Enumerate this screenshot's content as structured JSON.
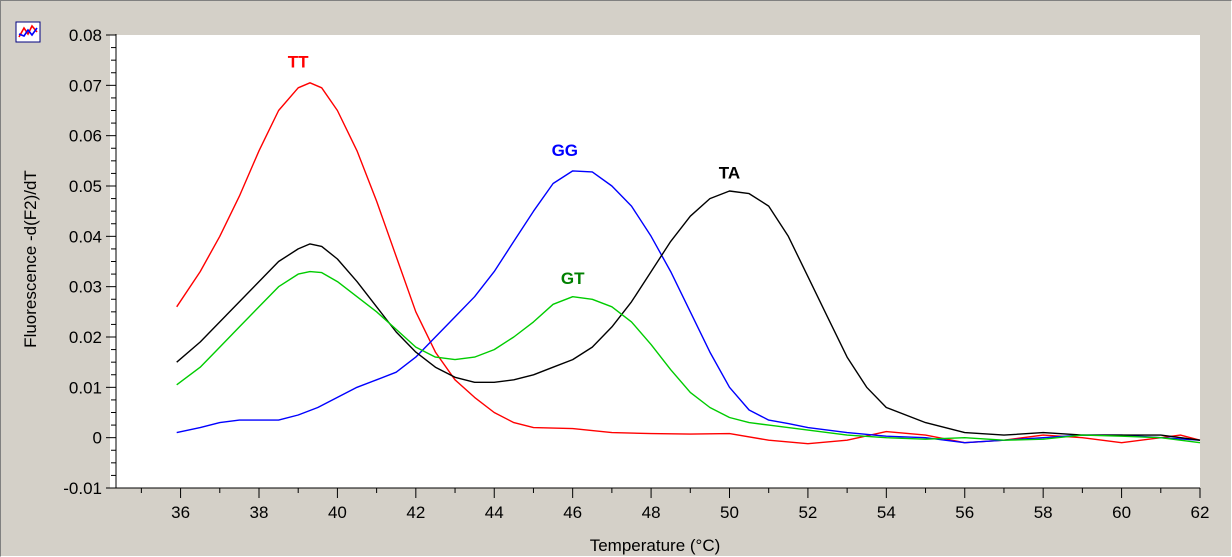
{
  "toolbar": {
    "chart_icon": "line-chart-icon"
  },
  "chart_data": {
    "type": "line",
    "title": "",
    "xlabel": "Temperature (°C)",
    "ylabel": "Fluorescence -d(F2)/dT",
    "xlim": [
      34.2,
      62
    ],
    "ylim": [
      -0.01,
      0.08
    ],
    "xticks": [
      36,
      38,
      40,
      42,
      44,
      46,
      48,
      50,
      52,
      54,
      56,
      58,
      60,
      62
    ],
    "xtick_labels": [
      "36",
      "38",
      "40",
      "42",
      "44",
      "46",
      "48",
      "50",
      "52",
      "54",
      "56",
      "58",
      "60",
      "62"
    ],
    "yticks": [
      -0.01,
      0,
      0.01,
      0.02,
      0.03,
      0.04,
      0.05,
      0.06,
      0.07,
      0.08
    ],
    "ytick_labels": [
      "-0.01",
      "0",
      "0.01",
      "0.02",
      "0.03",
      "0.04",
      "0.05",
      "0.06",
      "0.07",
      "0.08"
    ],
    "grid": false,
    "background": "#ffffff",
    "series": [
      {
        "name": "TT",
        "color": "#ff0000",
        "label_at": [
          39.0,
          0.0735
        ],
        "x": [
          35.9,
          36.5,
          37.0,
          37.5,
          38.0,
          38.5,
          39.0,
          39.3,
          39.6,
          40.0,
          40.5,
          41.0,
          41.5,
          42.0,
          42.5,
          43.0,
          43.5,
          44.0,
          44.5,
          45.0,
          46.0,
          47.0,
          48.0,
          49.0,
          50.0,
          51.0,
          52.0,
          53.0,
          54.0,
          55.0,
          56.0,
          57.0,
          58.0,
          59.0,
          60.0,
          61.0,
          61.5,
          62.0
        ],
        "y": [
          0.026,
          0.033,
          0.04,
          0.048,
          0.057,
          0.065,
          0.0695,
          0.0705,
          0.0695,
          0.065,
          0.057,
          0.047,
          0.036,
          0.025,
          0.017,
          0.0115,
          0.008,
          0.005,
          0.003,
          0.002,
          0.0018,
          0.001,
          0.0008,
          0.0007,
          0.0008,
          -0.0005,
          -0.0012,
          -0.0005,
          0.0012,
          0.0005,
          -0.001,
          -0.0005,
          0.0005,
          0.0,
          -0.001,
          0.0,
          0.0005,
          -0.0005
        ]
      },
      {
        "name": "GG",
        "color": "#0000ff",
        "label_at": [
          45.8,
          0.056
        ],
        "x": [
          35.9,
          36.5,
          37.0,
          37.5,
          38.0,
          38.5,
          39.0,
          39.5,
          40.0,
          40.5,
          41.0,
          41.5,
          42.0,
          42.5,
          43.0,
          43.5,
          44.0,
          44.5,
          45.0,
          45.5,
          46.0,
          46.5,
          47.0,
          47.5,
          48.0,
          48.5,
          49.0,
          49.5,
          50.0,
          50.5,
          51.0,
          51.5,
          52.0,
          53.0,
          54.0,
          55.0,
          56.0,
          57.0,
          58.0,
          59.0,
          60.0,
          61.0,
          62.0
        ],
        "y": [
          0.001,
          0.002,
          0.003,
          0.0035,
          0.0035,
          0.0035,
          0.0045,
          0.006,
          0.008,
          0.01,
          0.0115,
          0.013,
          0.016,
          0.02,
          0.024,
          0.028,
          0.033,
          0.039,
          0.045,
          0.0505,
          0.053,
          0.0528,
          0.05,
          0.046,
          0.04,
          0.033,
          0.025,
          0.017,
          0.01,
          0.0055,
          0.0035,
          0.0028,
          0.002,
          0.001,
          0.0003,
          0.0,
          -0.001,
          -0.0005,
          0.0,
          0.0005,
          0.0005,
          0.0,
          -0.0005
        ]
      },
      {
        "name": "TA",
        "color": "#000000",
        "label_at": [
          50.0,
          0.0515
        ],
        "x": [
          35.9,
          36.5,
          37.0,
          37.5,
          38.0,
          38.5,
          39.0,
          39.3,
          39.6,
          40.0,
          40.5,
          41.0,
          41.5,
          42.0,
          42.5,
          43.0,
          43.5,
          44.0,
          44.5,
          45.0,
          45.5,
          46.0,
          46.5,
          47.0,
          47.5,
          48.0,
          48.5,
          49.0,
          49.5,
          50.0,
          50.5,
          51.0,
          51.5,
          52.0,
          52.5,
          53.0,
          53.5,
          54.0,
          55.0,
          56.0,
          57.0,
          58.0,
          59.0,
          60.0,
          61.0,
          62.0
        ],
        "y": [
          0.015,
          0.019,
          0.023,
          0.027,
          0.031,
          0.035,
          0.0375,
          0.0385,
          0.038,
          0.0355,
          0.031,
          0.026,
          0.021,
          0.017,
          0.014,
          0.012,
          0.011,
          0.011,
          0.0115,
          0.0125,
          0.014,
          0.0155,
          0.018,
          0.022,
          0.027,
          0.033,
          0.039,
          0.044,
          0.0475,
          0.049,
          0.0485,
          0.046,
          0.04,
          0.032,
          0.024,
          0.016,
          0.01,
          0.006,
          0.003,
          0.001,
          0.0005,
          0.001,
          0.0005,
          0.0005,
          0.0005,
          -0.0005
        ]
      },
      {
        "name": "GT",
        "color": "#00cc00",
        "label_color": "#008000",
        "label_at": [
          46.0,
          0.0305
        ],
        "x": [
          35.9,
          36.5,
          37.0,
          37.5,
          38.0,
          38.5,
          39.0,
          39.3,
          39.6,
          40.0,
          40.5,
          41.0,
          41.5,
          42.0,
          42.5,
          43.0,
          43.5,
          44.0,
          44.5,
          45.0,
          45.5,
          46.0,
          46.5,
          47.0,
          47.5,
          48.0,
          48.5,
          49.0,
          49.5,
          50.0,
          50.5,
          51.0,
          52.0,
          53.0,
          54.0,
          55.0,
          56.0,
          57.0,
          58.0,
          59.0,
          60.0,
          61.0,
          62.0
        ],
        "y": [
          0.0105,
          0.014,
          0.018,
          0.022,
          0.026,
          0.03,
          0.0325,
          0.033,
          0.0328,
          0.031,
          0.028,
          0.025,
          0.0215,
          0.018,
          0.016,
          0.0155,
          0.016,
          0.0175,
          0.02,
          0.023,
          0.0265,
          0.028,
          0.0275,
          0.026,
          0.023,
          0.0185,
          0.0135,
          0.009,
          0.006,
          0.004,
          0.003,
          0.0025,
          0.0015,
          0.0005,
          0.0,
          -0.0003,
          0.0,
          -0.0005,
          -0.0003,
          0.0005,
          0.0003,
          0.0,
          -0.001
        ]
      }
    ]
  }
}
